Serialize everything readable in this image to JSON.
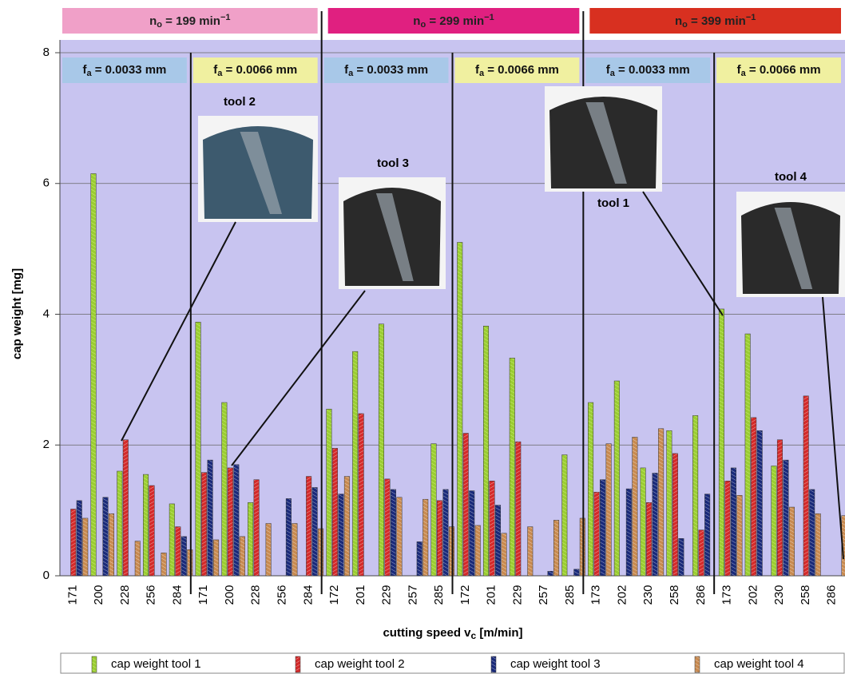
{
  "chart_data": {
    "type": "bar",
    "y_label": "cap weight [mg]",
    "x_label": {
      "text": "cutting speed v",
      "sub": "c",
      "unit": " [m/min]"
    },
    "categories": [
      "171",
      "200",
      "228",
      "256",
      "284",
      "171",
      "200",
      "228",
      "256",
      "284",
      "172",
      "201",
      "229",
      "257",
      "285",
      "172",
      "201",
      "229",
      "257",
      "285",
      "173",
      "202",
      "230",
      "258",
      "286",
      "173",
      "202",
      "230",
      "258",
      "286"
    ],
    "series": [
      {
        "name": "cap weight tool 1",
        "color": "#9acd32",
        "values": [
          null,
          6.15,
          1.6,
          1.55,
          1.1,
          3.88,
          2.65,
          1.12,
          null,
          null,
          2.55,
          3.43,
          3.85,
          null,
          2.02,
          5.1,
          3.82,
          3.33,
          null,
          1.85,
          2.65,
          2.98,
          1.65,
          2.22,
          2.45,
          4.08,
          3.7,
          1.68,
          null,
          null
        ]
      },
      {
        "name": "cap weight tool 2",
        "color": "#d42a2a",
        "values": [
          1.02,
          null,
          2.08,
          1.38,
          0.75,
          1.58,
          1.65,
          1.47,
          null,
          1.52,
          1.95,
          2.48,
          1.48,
          null,
          1.15,
          2.18,
          1.45,
          2.05,
          null,
          null,
          1.28,
          null,
          1.12,
          1.87,
          0.7,
          1.45,
          2.42,
          2.08,
          2.75,
          null
        ]
      },
      {
        "name": "cap weight tool 3",
        "color": "#1a2a7a",
        "values": [
          1.15,
          1.2,
          null,
          null,
          0.6,
          1.77,
          1.7,
          null,
          1.18,
          1.35,
          1.25,
          null,
          1.32,
          0.52,
          1.32,
          1.3,
          1.08,
          null,
          0.07,
          0.1,
          1.47,
          1.33,
          1.57,
          0.57,
          1.25,
          1.65,
          2.22,
          1.77,
          1.32,
          null
        ]
      },
      {
        "name": "cap weight tool 4",
        "color": "#c88a50",
        "values": [
          0.88,
          0.95,
          0.53,
          0.35,
          0.4,
          0.55,
          0.6,
          0.8,
          0.8,
          0.72,
          1.52,
          null,
          1.2,
          1.17,
          0.75,
          0.77,
          0.65,
          0.75,
          0.85,
          0.88,
          2.02,
          2.12,
          2.25,
          null,
          null,
          1.23,
          null,
          1.05,
          0.95,
          0.92
        ]
      }
    ],
    "ylim": [
      0,
      8
    ],
    "yticks": [
      0,
      2,
      4,
      6,
      8
    ],
    "grid": true
  },
  "speed_groups": [
    {
      "symbol": "n",
      "sub": "o",
      "text": " = 199 min",
      "sup": "−1",
      "color": "#f0a0c8"
    },
    {
      "symbol": "n",
      "sub": "o",
      "text": " = 299 min",
      "sup": "−1",
      "color": "#e02080"
    },
    {
      "symbol": "n",
      "sub": "o",
      "text": " = 399 min",
      "sup": "−1",
      "color": "#d83020"
    }
  ],
  "feed_labels": [
    {
      "symbol": "f",
      "sub": "a",
      "text": " = 0.0033 mm",
      "color": "#a8c8e8"
    },
    {
      "symbol": "f",
      "sub": "a",
      "text": " = 0.0066 mm",
      "color": "#f0f0a0"
    },
    {
      "symbol": "f",
      "sub": "a",
      "text": " = 0.0033 mm",
      "color": "#a8c8e8"
    },
    {
      "symbol": "f",
      "sub": "a",
      "text": " = 0.0066 mm",
      "color": "#f0f0a0"
    },
    {
      "symbol": "f",
      "sub": "a",
      "text": " = 0.0033 mm",
      "color": "#a8c8e8"
    },
    {
      "symbol": "f",
      "sub": "a",
      "text": " = 0.0066 mm",
      "color": "#f0f0a0"
    }
  ],
  "tool_labels": [
    "tool 2",
    "tool 3",
    "tool 1",
    "tool 4"
  ]
}
